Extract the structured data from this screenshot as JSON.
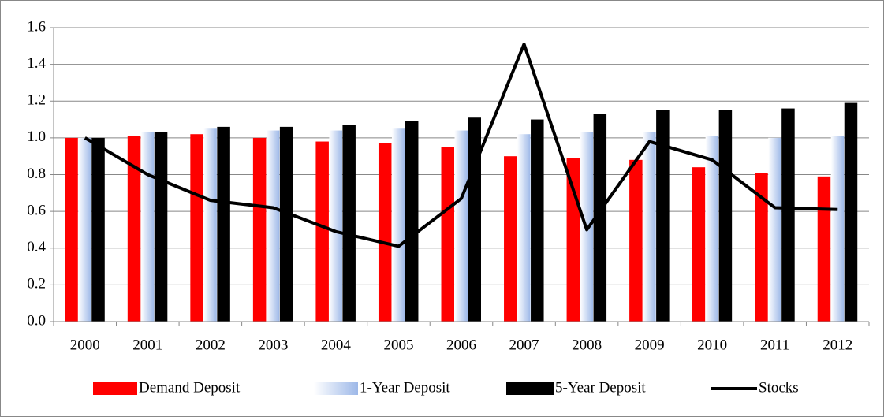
{
  "chart_data": {
    "type": "bar-line",
    "categories": [
      "2000",
      "2001",
      "2002",
      "2003",
      "2004",
      "2005",
      "2006",
      "2007",
      "2008",
      "2009",
      "2010",
      "2011",
      "2012"
    ],
    "series": [
      {
        "name": "Demand Deposit",
        "type": "bar",
        "color": "#ff0000",
        "values": [
          1.0,
          1.01,
          1.02,
          1.0,
          0.98,
          0.97,
          0.95,
          0.9,
          0.89,
          0.88,
          0.84,
          0.81,
          0.79
        ]
      },
      {
        "name": "1-Year Deposit",
        "type": "bar",
        "color": "#9db8e8",
        "values": [
          1.0,
          1.03,
          1.05,
          1.04,
          1.04,
          1.05,
          1.04,
          1.02,
          1.03,
          1.03,
          1.01,
          1.0,
          1.01
        ]
      },
      {
        "name": "5-Year Deposit",
        "type": "bar",
        "color": "#000000",
        "values": [
          1.0,
          1.03,
          1.06,
          1.06,
          1.07,
          1.09,
          1.11,
          1.1,
          1.13,
          1.15,
          1.15,
          1.16,
          1.19
        ]
      },
      {
        "name": "Stocks",
        "type": "line",
        "color": "#000000",
        "values": [
          1.0,
          0.8,
          0.66,
          0.62,
          0.49,
          0.41,
          0.67,
          1.51,
          0.5,
          0.98,
          0.88,
          0.62,
          0.61
        ]
      }
    ],
    "ylim": [
      0,
      1.6
    ],
    "yticks": [
      {
        "value": 0,
        "label": "0.0"
      },
      0.2,
      0.4,
      0.6,
      0.8,
      {
        "value": 1,
        "label": "1.0"
      },
      1.2,
      1.4,
      1.6
    ],
    "grid": true,
    "legend": "bottom"
  }
}
